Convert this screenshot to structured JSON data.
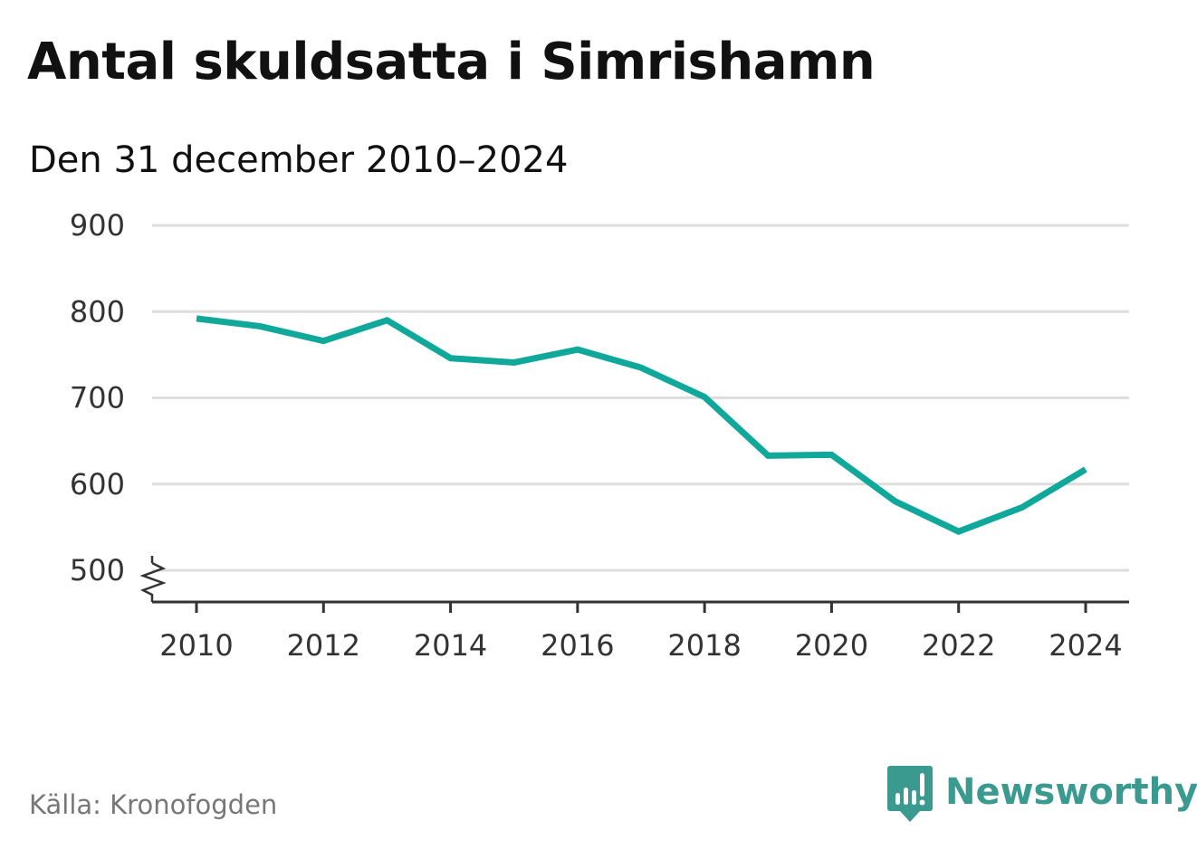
{
  "header": {
    "title": "Antal skuldsatta i Simrishamn",
    "subtitle": "Den 31 december 2010–2024"
  },
  "footer": {
    "source": "Källa: Kronofogden",
    "brand": "Newsworthy",
    "brand_icon": "chart-speech-bubble-icon",
    "brand_color": "#3a9a90"
  },
  "chart_data": {
    "type": "line",
    "title": "Antal skuldsatta i Simrishamn",
    "subtitle": "Den 31 december 2010–2024",
    "xlabel": "",
    "ylabel": "",
    "x": [
      2010,
      2011,
      2012,
      2013,
      2014,
      2015,
      2016,
      2017,
      2018,
      2019,
      2020,
      2021,
      2022,
      2023,
      2024
    ],
    "series": [
      {
        "values": [
          792,
          783,
          766,
          790,
          746,
          741,
          756,
          735,
          701,
          633,
          634,
          580,
          545,
          573,
          617
        ],
        "color": "#10a89a"
      }
    ],
    "xticks": [
      2010,
      2012,
      2014,
      2016,
      2018,
      2020,
      2022,
      2024
    ],
    "xtick_labels": [
      "2010",
      "2012",
      "2014",
      "2016",
      "2018",
      "2020",
      "2022",
      "2024"
    ],
    "yticks": [
      500,
      600,
      700,
      800,
      900
    ],
    "ytick_labels": [
      "500",
      "600",
      "700",
      "800",
      "900"
    ],
    "ylim": [
      500,
      900
    ],
    "xlim": [
      2010,
      2024
    ],
    "grid": true,
    "axis_break": true,
    "gridline_color": "#dddddd",
    "axis_color": "#333333"
  }
}
